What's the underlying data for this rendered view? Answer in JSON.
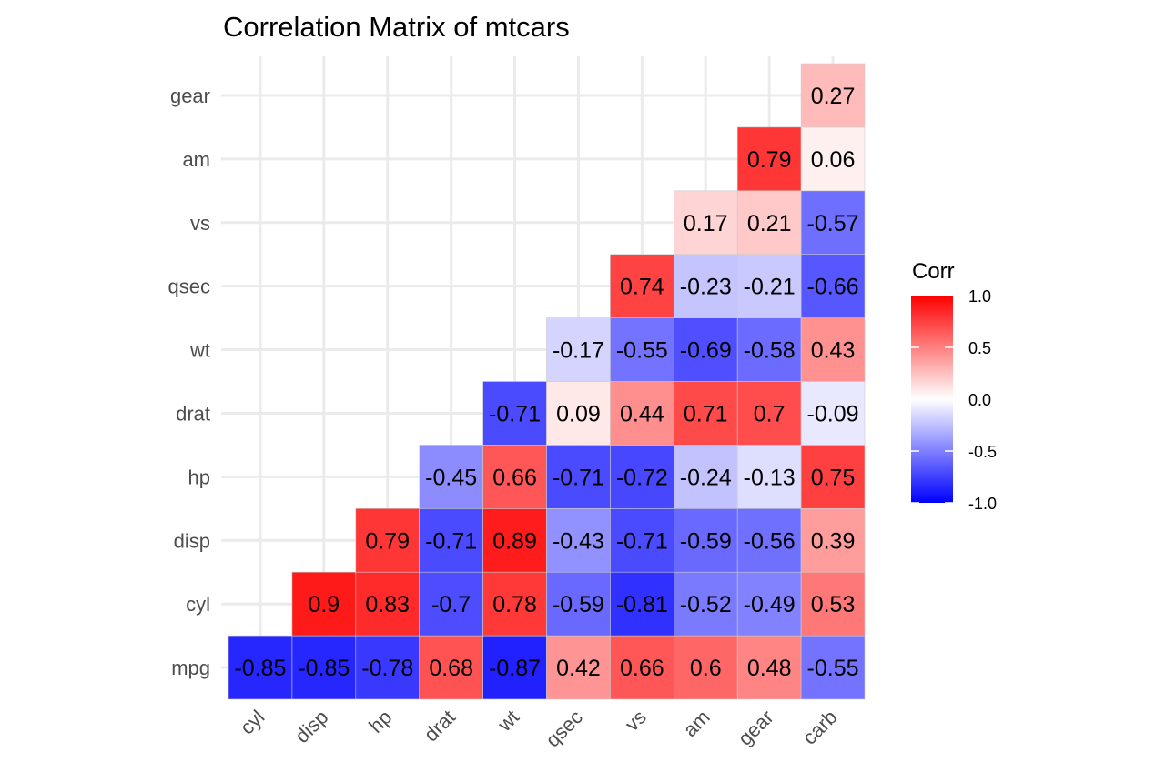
{
  "chart_data": {
    "type": "heatmap",
    "title": "Correlation Matrix of mtcars",
    "x_categories": [
      "cyl",
      "disp",
      "hp",
      "drat",
      "wt",
      "qsec",
      "vs",
      "am",
      "gear",
      "carb"
    ],
    "y_categories": [
      "mpg",
      "cyl",
      "disp",
      "hp",
      "drat",
      "wt",
      "qsec",
      "vs",
      "am",
      "gear"
    ],
    "cells": [
      {
        "x": "cyl",
        "y": "mpg",
        "value": -0.85
      },
      {
        "x": "disp",
        "y": "mpg",
        "value": -0.85
      },
      {
        "x": "hp",
        "y": "mpg",
        "value": -0.78
      },
      {
        "x": "drat",
        "y": "mpg",
        "value": 0.68
      },
      {
        "x": "wt",
        "y": "mpg",
        "value": -0.87
      },
      {
        "x": "qsec",
        "y": "mpg",
        "value": 0.42
      },
      {
        "x": "vs",
        "y": "mpg",
        "value": 0.66
      },
      {
        "x": "am",
        "y": "mpg",
        "value": 0.6
      },
      {
        "x": "gear",
        "y": "mpg",
        "value": 0.48
      },
      {
        "x": "carb",
        "y": "mpg",
        "value": -0.55
      },
      {
        "x": "disp",
        "y": "cyl",
        "value": 0.9
      },
      {
        "x": "hp",
        "y": "cyl",
        "value": 0.83
      },
      {
        "x": "drat",
        "y": "cyl",
        "value": -0.7
      },
      {
        "x": "wt",
        "y": "cyl",
        "value": 0.78
      },
      {
        "x": "qsec",
        "y": "cyl",
        "value": -0.59
      },
      {
        "x": "vs",
        "y": "cyl",
        "value": -0.81
      },
      {
        "x": "am",
        "y": "cyl",
        "value": -0.52
      },
      {
        "x": "gear",
        "y": "cyl",
        "value": -0.49
      },
      {
        "x": "carb",
        "y": "cyl",
        "value": 0.53
      },
      {
        "x": "hp",
        "y": "disp",
        "value": 0.79
      },
      {
        "x": "drat",
        "y": "disp",
        "value": -0.71
      },
      {
        "x": "wt",
        "y": "disp",
        "value": 0.89
      },
      {
        "x": "qsec",
        "y": "disp",
        "value": -0.43
      },
      {
        "x": "vs",
        "y": "disp",
        "value": -0.71
      },
      {
        "x": "am",
        "y": "disp",
        "value": -0.59
      },
      {
        "x": "gear",
        "y": "disp",
        "value": -0.56
      },
      {
        "x": "carb",
        "y": "disp",
        "value": 0.39
      },
      {
        "x": "drat",
        "y": "hp",
        "value": -0.45
      },
      {
        "x": "wt",
        "y": "hp",
        "value": 0.66
      },
      {
        "x": "qsec",
        "y": "hp",
        "value": -0.71
      },
      {
        "x": "vs",
        "y": "hp",
        "value": -0.72
      },
      {
        "x": "am",
        "y": "hp",
        "value": -0.24
      },
      {
        "x": "gear",
        "y": "hp",
        "value": -0.13
      },
      {
        "x": "carb",
        "y": "hp",
        "value": 0.75
      },
      {
        "x": "wt",
        "y": "drat",
        "value": -0.71
      },
      {
        "x": "qsec",
        "y": "drat",
        "value": 0.09
      },
      {
        "x": "vs",
        "y": "drat",
        "value": 0.44
      },
      {
        "x": "am",
        "y": "drat",
        "value": 0.71
      },
      {
        "x": "gear",
        "y": "drat",
        "value": 0.7
      },
      {
        "x": "carb",
        "y": "drat",
        "value": -0.09
      },
      {
        "x": "qsec",
        "y": "wt",
        "value": -0.17
      },
      {
        "x": "vs",
        "y": "wt",
        "value": -0.55
      },
      {
        "x": "am",
        "y": "wt",
        "value": -0.69
      },
      {
        "x": "gear",
        "y": "wt",
        "value": -0.58
      },
      {
        "x": "carb",
        "y": "wt",
        "value": 0.43
      },
      {
        "x": "vs",
        "y": "qsec",
        "value": 0.74
      },
      {
        "x": "am",
        "y": "qsec",
        "value": -0.23
      },
      {
        "x": "gear",
        "y": "qsec",
        "value": -0.21
      },
      {
        "x": "carb",
        "y": "qsec",
        "value": -0.66
      },
      {
        "x": "am",
        "y": "vs",
        "value": 0.17
      },
      {
        "x": "gear",
        "y": "vs",
        "value": 0.21
      },
      {
        "x": "carb",
        "y": "vs",
        "value": -0.57
      },
      {
        "x": "gear",
        "y": "am",
        "value": 0.79
      },
      {
        "x": "carb",
        "y": "am",
        "value": 0.06
      },
      {
        "x": "carb",
        "y": "gear",
        "value": 0.27
      }
    ],
    "color_scale": {
      "low": "#0000ff",
      "mid": "#ffffff",
      "high": "#ff0000",
      "limits": [
        -1,
        1
      ]
    },
    "legend": {
      "title": "Corr",
      "ticks": [
        "1.0",
        "0.5",
        "0.0",
        "-0.5",
        "-1.0"
      ],
      "tick_values": [
        1,
        0.5,
        0,
        -0.5,
        -1
      ],
      "placement": "right"
    },
    "grid": true
  }
}
